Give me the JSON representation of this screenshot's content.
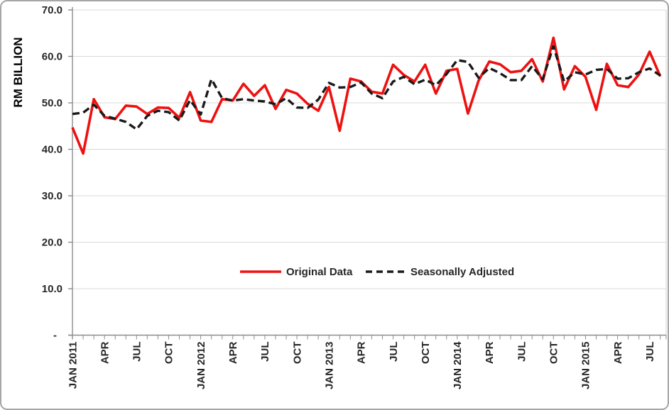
{
  "chart_data": {
    "type": "line",
    "title": "",
    "ylabel": "RM BILLION",
    "x_start": "JAN 2011",
    "x_end": "AUG 2015",
    "frequency": "monthly",
    "n_points": 56,
    "ylim": [
      0,
      70
    ],
    "grid": "horizontal",
    "legend_position": "inside-bottom-center",
    "y_ticks": [
      {
        "value": 0,
        "label": "-"
      },
      {
        "value": 10,
        "label": "10.0"
      },
      {
        "value": 20,
        "label": "20.0"
      },
      {
        "value": 30,
        "label": "30.0"
      },
      {
        "value": 40,
        "label": "40.0"
      },
      {
        "value": 50,
        "label": "50.0"
      },
      {
        "value": 60,
        "label": "60.0"
      },
      {
        "value": 70,
        "label": "70.0"
      }
    ],
    "x_tick_labels": [
      {
        "index": 0,
        "label": "JAN 2011"
      },
      {
        "index": 3,
        "label": "APR"
      },
      {
        "index": 6,
        "label": "JUL"
      },
      {
        "index": 9,
        "label": "OCT"
      },
      {
        "index": 12,
        "label": "JAN 2012"
      },
      {
        "index": 15,
        "label": "APR"
      },
      {
        "index": 18,
        "label": "JUL"
      },
      {
        "index": 21,
        "label": "OCT"
      },
      {
        "index": 24,
        "label": "JAN 2013"
      },
      {
        "index": 27,
        "label": "APR"
      },
      {
        "index": 30,
        "label": "JUL"
      },
      {
        "index": 33,
        "label": "OCT"
      },
      {
        "index": 36,
        "label": "JAN 2014"
      },
      {
        "index": 39,
        "label": "APR"
      },
      {
        "index": 42,
        "label": "JUL"
      },
      {
        "index": 45,
        "label": "OCT"
      },
      {
        "index": 48,
        "label": "JAN 2015"
      },
      {
        "index": 51,
        "label": "APR"
      },
      {
        "index": 54,
        "label": "JUL"
      }
    ],
    "series": [
      {
        "name": "Original Data",
        "style": "solid",
        "color": "#ee1111",
        "values": [
          44.7,
          39.1,
          50.8,
          46.9,
          46.5,
          49.4,
          49.2,
          47.6,
          49.0,
          48.9,
          46.8,
          52.3,
          46.2,
          45.9,
          50.8,
          50.5,
          54.1,
          51.5,
          53.8,
          48.7,
          52.8,
          52.0,
          49.8,
          48.3,
          53.4,
          44.0,
          55.2,
          54.6,
          52.4,
          52.0,
          58.2,
          56.0,
          54.6,
          58.2,
          52.0,
          56.9,
          57.3,
          47.7,
          54.8,
          58.9,
          58.3,
          56.6,
          56.9,
          59.4,
          54.6,
          64.0,
          52.9,
          57.9,
          55.6,
          48.5,
          58.4,
          53.8,
          53.4,
          56.1,
          61.0,
          55.7
        ]
      },
      {
        "name": "Seasonally Adjusted",
        "style": "dashed",
        "color": "#1a1a1a",
        "values": [
          47.6,
          47.9,
          49.6,
          47.2,
          46.6,
          45.9,
          44.3,
          47.2,
          48.3,
          48.0,
          46.2,
          50.6,
          47.5,
          55.1,
          51.0,
          50.5,
          50.8,
          50.5,
          50.3,
          49.7,
          51.0,
          49.0,
          48.9,
          50.7,
          54.3,
          53.3,
          53.4,
          54.4,
          52.0,
          51.0,
          54.6,
          55.6,
          54.0,
          55.0,
          53.8,
          56.2,
          59.2,
          58.8,
          55.4,
          57.5,
          56.4,
          54.9,
          54.9,
          57.9,
          55.1,
          62.2,
          54.6,
          56.6,
          56.1,
          57.1,
          57.3,
          55.2,
          55.3,
          56.6,
          57.4,
          55.9
        ]
      }
    ]
  },
  "legend": {
    "items": [
      "Original Data",
      "Seasonally Adjusted"
    ]
  },
  "colors": {
    "background": "#ffffff",
    "frame": "#a6a6a6",
    "grid": "#d9d9d9",
    "axis": "#8c8c8c",
    "tick_text": "#262626",
    "axis_title_text": "#000000",
    "original_series": "#ee1111",
    "adjusted_series": "#1a1a1a"
  }
}
